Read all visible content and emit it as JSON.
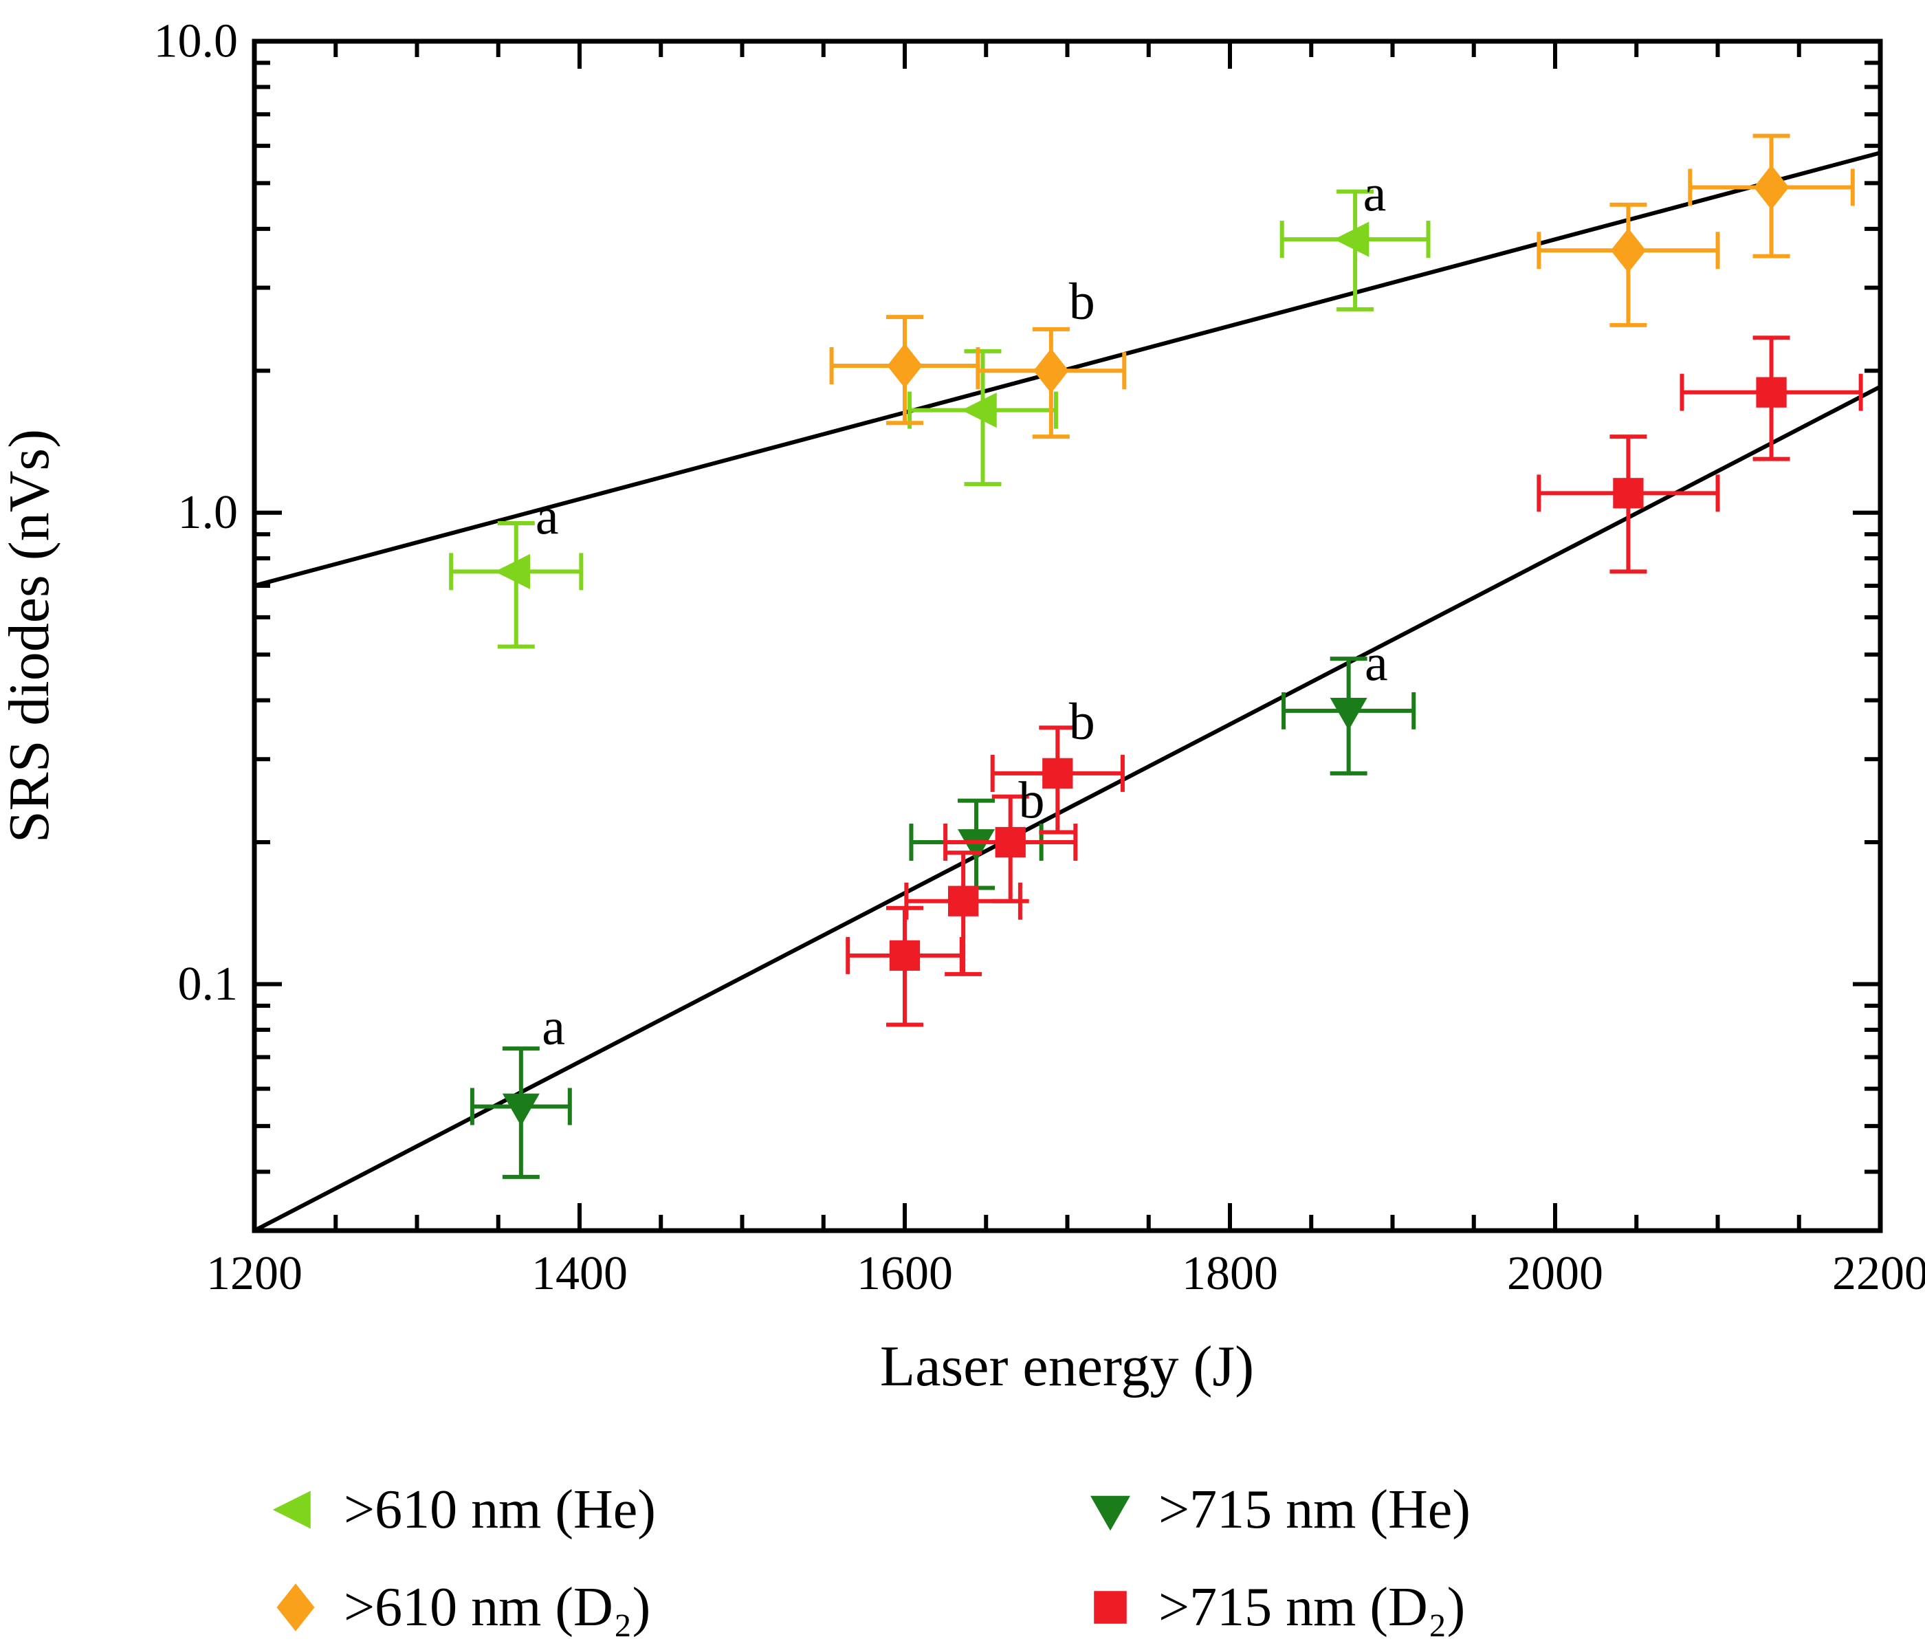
{
  "chart_data": {
    "type": "scatter",
    "title": "",
    "xlabel": "Laser energy (J)",
    "ylabel": "SRS diodes (nVs)",
    "xlim": [
      1200,
      2200
    ],
    "ylim": [
      0.03,
      10
    ],
    "yscale": "log",
    "xscale": "linear",
    "grid": false,
    "x_major_ticks": [
      1200,
      1400,
      1600,
      1800,
      2000,
      2200
    ],
    "x_minor_step": 50,
    "y_major_ticks": [
      0.1,
      1.0,
      10.0
    ],
    "y_major_labels": [
      "0.1",
      "1.0",
      "10.0"
    ],
    "series": [
      {
        "name": ">610 nm (He)",
        "marker": "triangle-left",
        "color": "#7fd41c",
        "points": [
          {
            "x": 1361,
            "y": 0.75,
            "xerr": 40,
            "yerr_plus": 0.2,
            "yerr_minus": 0.23
          },
          {
            "x": 1648,
            "y": 1.65,
            "xerr": 45,
            "yerr_plus": 0.55,
            "yerr_minus": 0.5
          },
          {
            "x": 1877,
            "y": 3.8,
            "xerr": 45,
            "yerr_plus": 1.0,
            "yerr_minus": 1.1
          }
        ]
      },
      {
        "name": ">610 nm (D₂)",
        "marker": "diamond",
        "color": "#f9a11b",
        "points": [
          {
            "x": 1600,
            "y": 2.05,
            "xerr": 45,
            "yerr_plus": 0.55,
            "yerr_minus": 0.5
          },
          {
            "x": 1690,
            "y": 2.0,
            "xerr": 45,
            "yerr_plus": 0.45,
            "yerr_minus": 0.55
          },
          {
            "x": 2045,
            "y": 3.6,
            "xerr": 55,
            "yerr_plus": 0.9,
            "yerr_minus": 1.1
          },
          {
            "x": 2133,
            "y": 4.9,
            "xerr": 50,
            "yerr_plus": 1.4,
            "yerr_minus": 1.4
          }
        ]
      },
      {
        "name": ">715 nm (He)",
        "marker": "triangle-down",
        "color": "#1a7d1a",
        "points": [
          {
            "x": 1364,
            "y": 0.055,
            "xerr": 30,
            "yerr_plus": 0.018,
            "yerr_minus": 0.016
          },
          {
            "x": 1644,
            "y": 0.2,
            "xerr": 40,
            "yerr_plus": 0.045,
            "yerr_minus": 0.04
          },
          {
            "x": 1873,
            "y": 0.38,
            "xerr": 40,
            "yerr_plus": 0.11,
            "yerr_minus": 0.1
          }
        ]
      },
      {
        "name": ">715 nm (D₂)",
        "marker": "square",
        "color": "#ee1c25",
        "points": [
          {
            "x": 1600,
            "y": 0.115,
            "xerr": 35,
            "yerr_plus": 0.03,
            "yerr_minus": 0.033
          },
          {
            "x": 1636,
            "y": 0.15,
            "xerr": 35,
            "yerr_plus": 0.04,
            "yerr_minus": 0.045
          },
          {
            "x": 1665,
            "y": 0.2,
            "xerr": 40,
            "yerr_plus": 0.05,
            "yerr_minus": 0.05
          },
          {
            "x": 1694,
            "y": 0.28,
            "xerr": 40,
            "yerr_plus": 0.07,
            "yerr_minus": 0.07
          },
          {
            "x": 2045,
            "y": 1.1,
            "xerr": 55,
            "yerr_plus": 0.35,
            "yerr_minus": 0.35
          },
          {
            "x": 2133,
            "y": 1.8,
            "xerr": 55,
            "yerr_plus": 0.55,
            "yerr_minus": 0.5
          }
        ]
      }
    ],
    "fit_lines": [
      {
        "name": "fit-610nm",
        "x1": 1200,
        "y1": 0.7,
        "x2": 2200,
        "y2": 5.8,
        "color": "#000000"
      },
      {
        "name": "fit-715nm",
        "x1": 1200,
        "y1": 0.03,
        "x2": 2200,
        "y2": 1.85,
        "color": "#000000"
      }
    ],
    "annotations": [
      {
        "text": "a",
        "x": 1380,
        "y": 0.98
      },
      {
        "text": "b",
        "x": 1709,
        "y": 2.8
      },
      {
        "text": "a",
        "x": 1889,
        "y": 4.75
      },
      {
        "text": "a",
        "x": 1890,
        "y": 0.48
      },
      {
        "text": "b",
        "x": 1709,
        "y": 0.36
      },
      {
        "text": "b",
        "x": 1678,
        "y": 0.245
      },
      {
        "text": "a",
        "x": 1384,
        "y": 0.081
      }
    ],
    "legend": {
      "position": "below",
      "entries": [
        {
          "series": 0,
          "col": 0,
          "row": 0
        },
        {
          "series": 1,
          "col": 0,
          "row": 1
        },
        {
          "series": 2,
          "col": 1,
          "row": 0
        },
        {
          "series": 3,
          "col": 1,
          "row": 1
        }
      ]
    }
  }
}
